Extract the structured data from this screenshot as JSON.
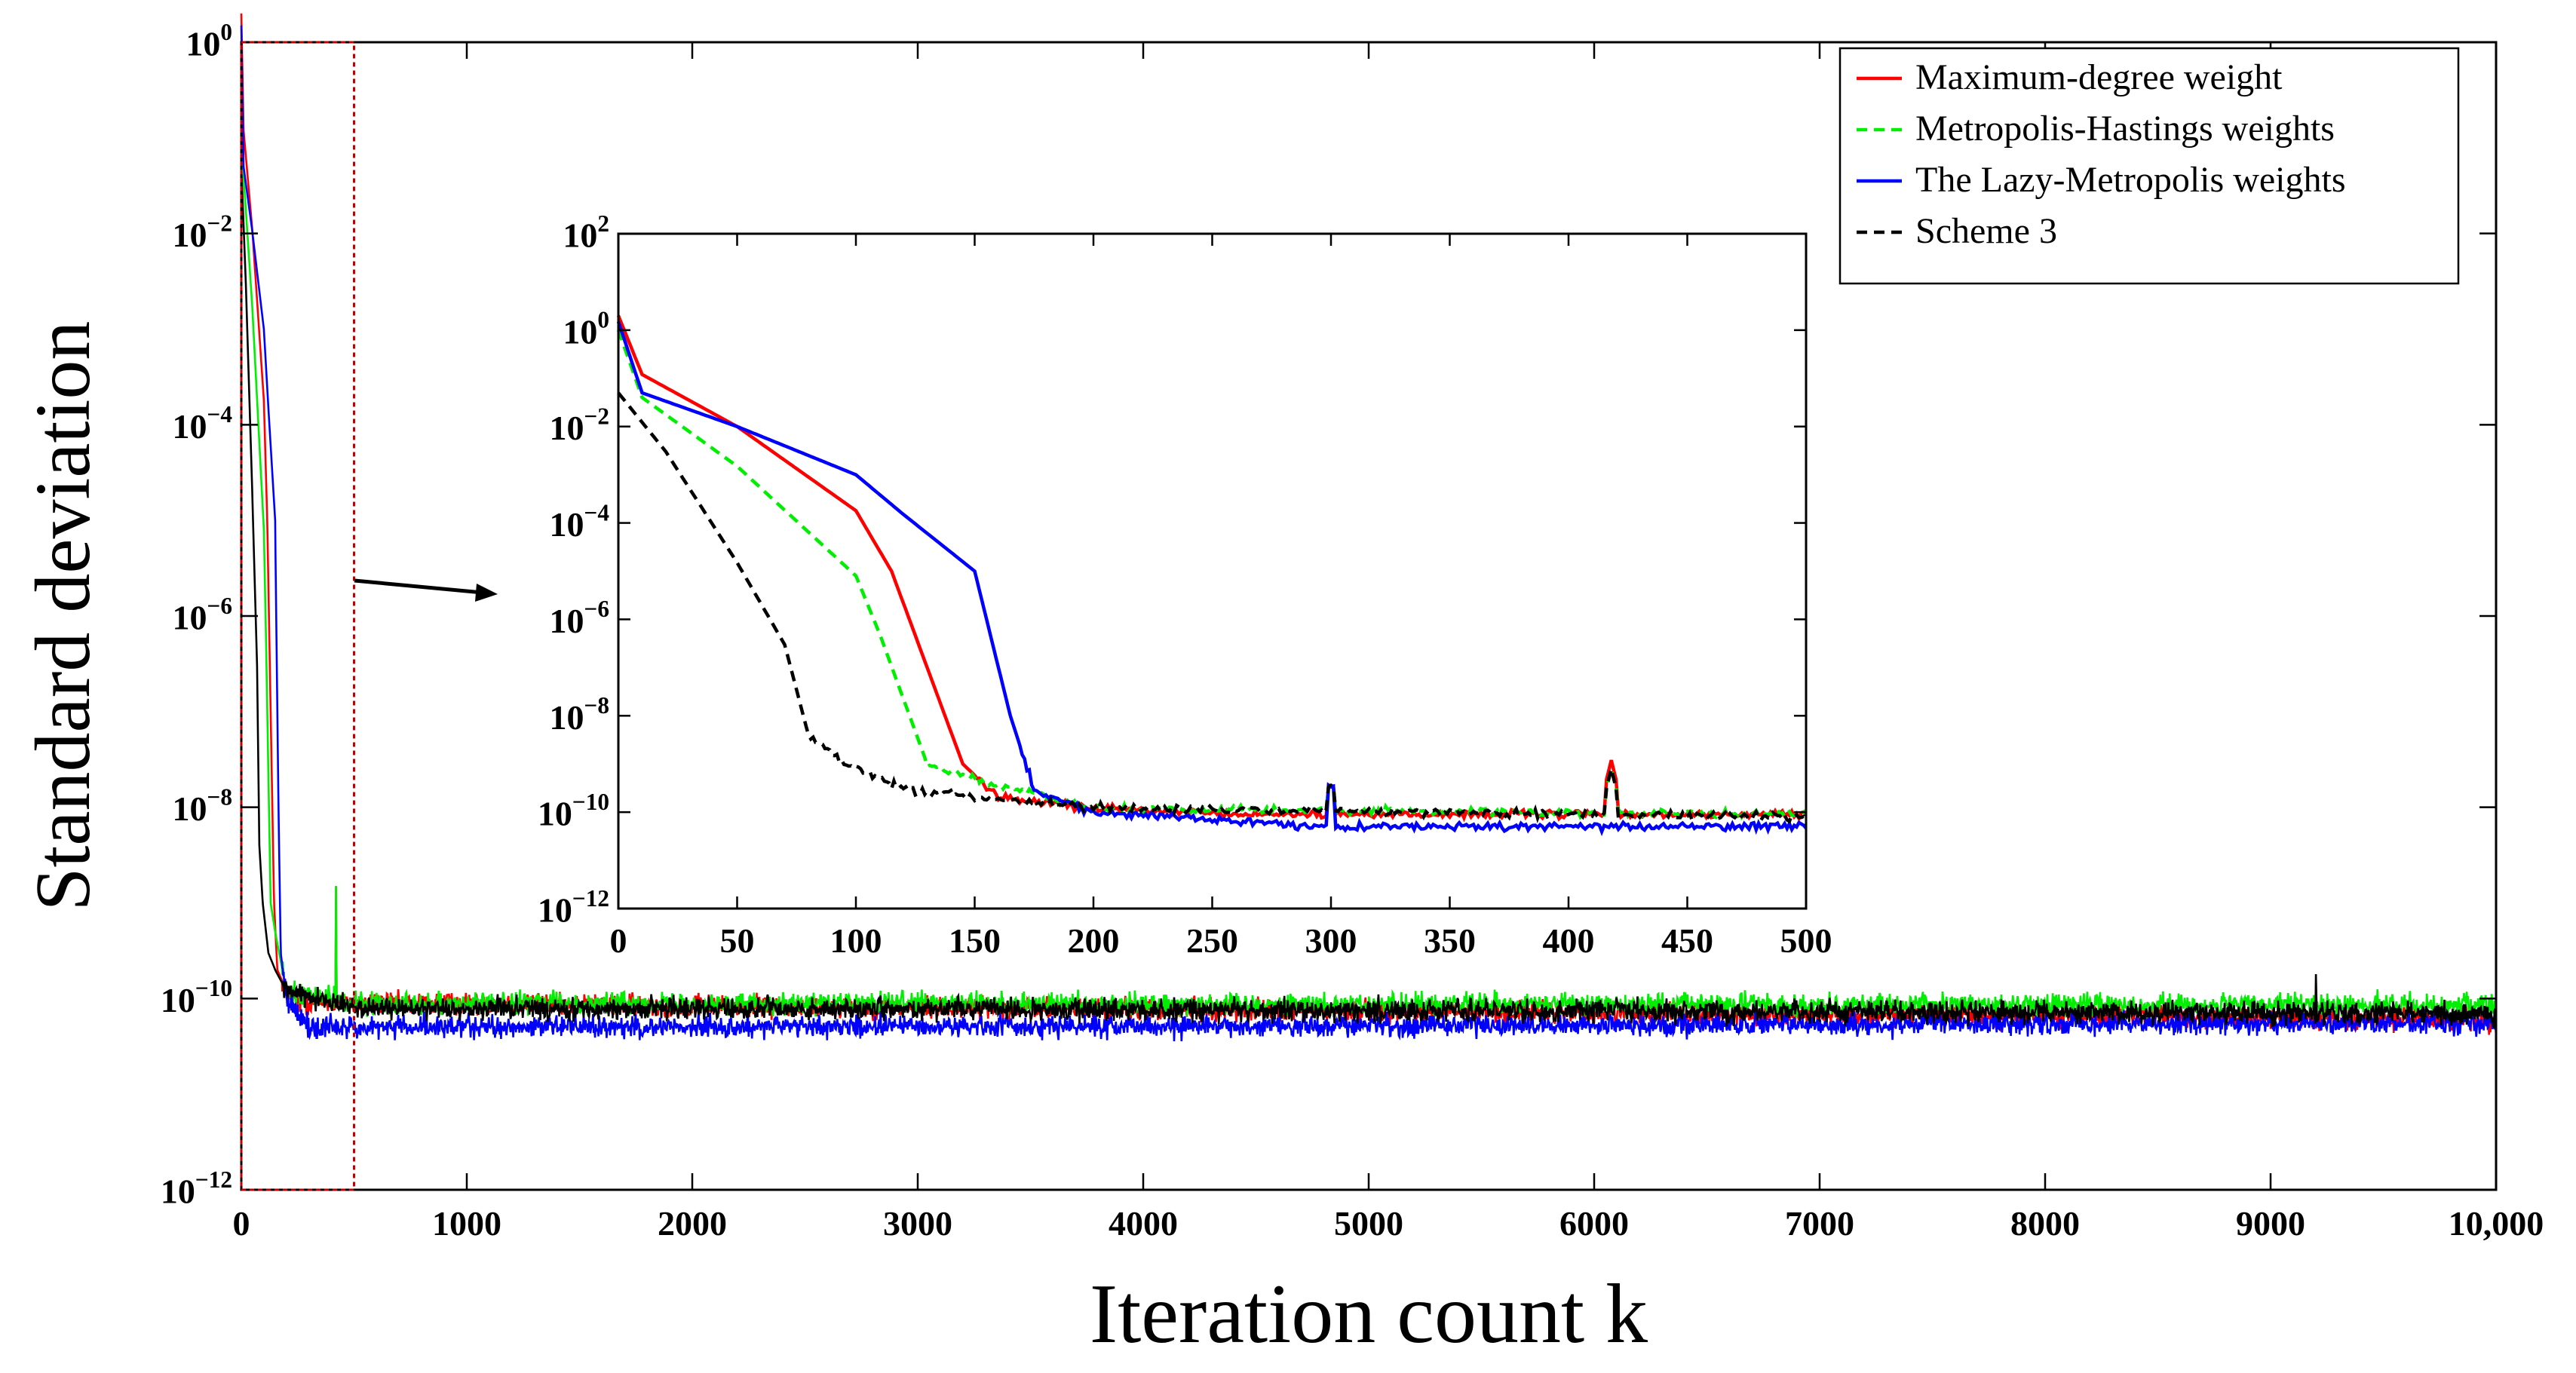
{
  "chart_data": {
    "type": "line",
    "title": "",
    "xlabel": "Iteration count k",
    "ylabel": "Standard deviation",
    "yscale": "log",
    "xlim": [
      0,
      10000
    ],
    "ylim": [
      1e-12,
      1
    ],
    "xticks": [
      0,
      1000,
      2000,
      3000,
      4000,
      5000,
      6000,
      7000,
      8000,
      9000,
      10000
    ],
    "xtick_labels": [
      "0",
      "1000",
      "2000",
      "3000",
      "4000",
      "5000",
      "6000",
      "7000",
      "8000",
      "9000",
      "10,000"
    ],
    "yticks": [
      1e-12,
      1e-10,
      1e-08,
      1e-06,
      0.0001,
      0.01,
      1
    ],
    "ytick_labels": [
      {
        "base": "10",
        "exp": "−12"
      },
      {
        "base": "10",
        "exp": "−10"
      },
      {
        "base": "10",
        "exp": "−8"
      },
      {
        "base": "10",
        "exp": "−6"
      },
      {
        "base": "10",
        "exp": "−4"
      },
      {
        "base": "10",
        "exp": "−2"
      },
      {
        "base": "10",
        "exp": "0"
      }
    ],
    "legend_position": "top-right",
    "series": [
      {
        "name": "Maximum-degree weight",
        "color": "#ff0000",
        "dash": "solid",
        "anchors": [
          [
            0,
            2.0
          ],
          [
            10,
            0.12
          ],
          [
            50,
            0.01
          ],
          [
            100,
            0.00018
          ],
          [
            115,
            1e-05
          ],
          [
            145,
            1e-09
          ],
          [
            160,
            2e-10
          ],
          [
            200,
            1.2e-10
          ],
          [
            250,
            9e-11
          ],
          [
            500,
            9e-11
          ],
          [
            10000,
            6e-11
          ]
        ],
        "noise_floor": 6e-11
      },
      {
        "name": "Metropolis-Hastings weights",
        "color": "#00ee00",
        "dash": "dashed",
        "anchors": [
          [
            0,
            1.0
          ],
          [
            10,
            0.04
          ],
          [
            50,
            0.0015
          ],
          [
            100,
            8e-06
          ],
          [
            110,
            5e-07
          ],
          [
            130,
            1e-09
          ],
          [
            150,
            5e-10
          ],
          [
            200,
            1.2e-10
          ],
          [
            500,
            9e-11
          ],
          [
            10000,
            8.5e-11
          ]
        ],
        "noise_floor": 8.5e-11
      },
      {
        "name": "The Lazy-Metropolis weights",
        "color": "#0000ff",
        "dash": "solid",
        "anchors": [
          [
            0,
            1.5
          ],
          [
            10,
            0.05
          ],
          [
            50,
            0.01
          ],
          [
            100,
            0.001
          ],
          [
            120,
            0.00015
          ],
          [
            150,
            1e-05
          ],
          [
            165,
            1e-08
          ],
          [
            175,
            3e-10
          ],
          [
            200,
            1e-10
          ],
          [
            300,
            5e-11
          ],
          [
            10000,
            5.5e-11
          ]
        ],
        "noise_floor": 5.5e-11
      },
      {
        "name": "Scheme 3",
        "color": "#000000",
        "dash": "dashed",
        "anchors": [
          [
            0,
            0.05
          ],
          [
            20,
            0.003
          ],
          [
            50,
            1.5e-05
          ],
          [
            70,
            3e-07
          ],
          [
            80,
            4e-09
          ],
          [
            95,
            1e-09
          ],
          [
            120,
            3e-10
          ],
          [
            150,
            2e-10
          ],
          [
            200,
            1.2e-10
          ],
          [
            500,
            8e-11
          ],
          [
            10000,
            7e-11
          ]
        ],
        "noise_floor": 7e-11
      }
    ],
    "spikes": [
      {
        "x": 300,
        "value": 3e-10
      },
      {
        "x": 420,
        "value": 1.5e-09
      },
      {
        "x": 9200,
        "value": 1.8e-10
      }
    ],
    "inset": {
      "xlim": [
        0,
        500
      ],
      "ylim": [
        1e-12,
        100
      ],
      "xticks": [
        0,
        50,
        100,
        150,
        200,
        250,
        300,
        350,
        400,
        450,
        500
      ],
      "xtick_labels": [
        "0",
        "50",
        "100",
        "150",
        "200",
        "250",
        "300",
        "350",
        "400",
        "450",
        "500"
      ],
      "yticks": [
        1e-12,
        1e-10,
        1e-08,
        1e-06,
        0.0001,
        0.01,
        1,
        100
      ],
      "ytick_labels": [
        {
          "base": "10",
          "exp": "−12"
        },
        {
          "base": "10",
          "exp": "−10"
        },
        {
          "base": "10",
          "exp": "−8"
        },
        {
          "base": "10",
          "exp": "−6"
        },
        {
          "base": "10",
          "exp": "−4"
        },
        {
          "base": "10",
          "exp": "−2"
        },
        {
          "base": "10",
          "exp": "0"
        },
        {
          "base": "10",
          "exp": "2"
        }
      ],
      "zoom_region": {
        "x": [
          0,
          500
        ],
        "y": [
          1e-12,
          1
        ]
      }
    }
  }
}
